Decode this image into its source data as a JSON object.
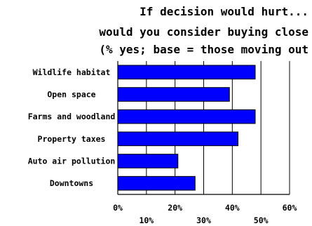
{
  "chart_data": {
    "type": "bar",
    "orientation": "horizontal",
    "title_lines": [
      "If decision would hurt...",
      "would you consider buying close",
      "(% yes; base = those moving out"
    ],
    "categories": [
      "Wildlife habitat",
      "Open space",
      "Farms and woodland",
      "Property taxes",
      "Auto air pollution",
      "Downtowns"
    ],
    "values": [
      48,
      39,
      48,
      42,
      21,
      27
    ],
    "xlim": [
      0,
      60
    ],
    "xticks_upper": [
      "0%",
      "20%",
      "40%",
      "60%"
    ],
    "xticks_lower": [
      "10%",
      "30%",
      "50%"
    ],
    "grid": "vertical",
    "bar_color": "#0000ff",
    "bar_edge_color": "#000000"
  }
}
